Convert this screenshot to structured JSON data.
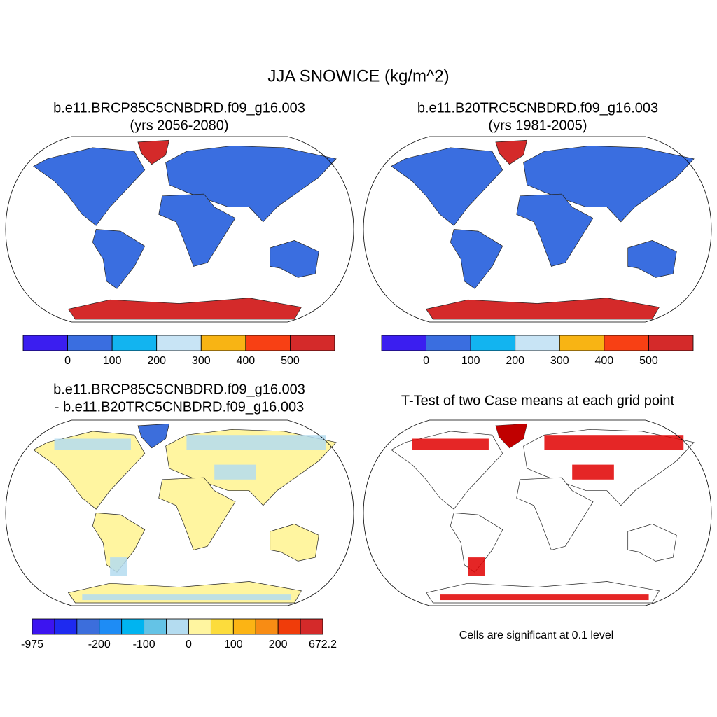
{
  "title": "JJA SNOWICE (kg/m^2)",
  "panels": [
    {
      "title": [
        "b.e11.BRCP85C5CNBDRD.f09_g16.003",
        "(yrs 2056-2080)"
      ],
      "colorbar": {
        "colors": [
          "#3b1ef0",
          "#3a6ee0",
          "#12b4f0",
          "#c8e4f5",
          "#f8b414",
          "#f84014",
          "#d42a2a"
        ],
        "labels": [
          null,
          "0",
          "100",
          "200",
          "300",
          "400",
          "500",
          null
        ]
      }
    },
    {
      "title": [
        "b.e11.B20TRC5CNBDRD.f09_g16.003",
        "(yrs 1981-2005)"
      ],
      "colorbar": {
        "colors": [
          "#3b1ef0",
          "#3a6ee0",
          "#12b4f0",
          "#c8e4f5",
          "#f8b414",
          "#f84014",
          "#d42a2a"
        ],
        "labels": [
          null,
          "0",
          "100",
          "200",
          "300",
          "400",
          "500",
          null
        ]
      }
    },
    {
      "title": [
        "b.e11.BRCP85C5CNBDRD.f09_g16.003",
        "- b.e11.B20TRC5CNBDRD.f09_g16.003"
      ],
      "colorbar": {
        "colors": [
          "#3c14f0",
          "#1e2af0",
          "#3c6edc",
          "#1e8cf5",
          "#00b4f0",
          "#64c3e6",
          "#b4dcf0",
          "#fff5a0",
          "#fcdc3c",
          "#fcb414",
          "#f88c14",
          "#f03c0a",
          "#d42a2a"
        ],
        "labels": [
          "-975",
          null,
          null,
          "-200",
          null,
          "-100",
          null,
          "0",
          null,
          "100",
          null,
          "200",
          null,
          "672.2"
        ]
      }
    },
    {
      "title": [
        "T-Test of two Case means at each grid point"
      ],
      "note": "Cells are significant at 0.1 level"
    }
  ]
}
